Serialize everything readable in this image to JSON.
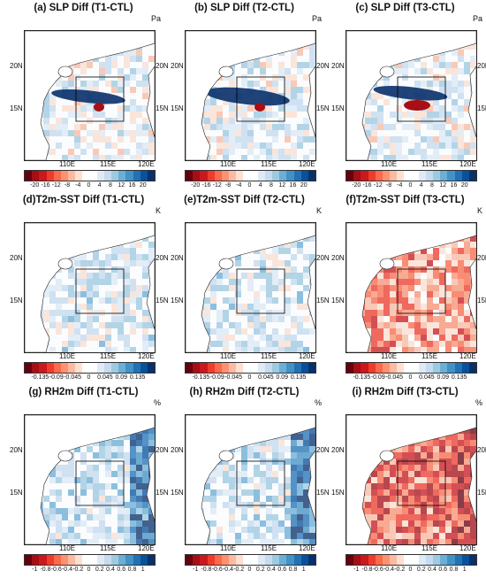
{
  "panels": [
    {
      "title": "(a) SLP Diff (T1-CTL)",
      "unit": "Pa",
      "row": 0,
      "col": 0,
      "type": "slp",
      "exp": "T1"
    },
    {
      "title": "(b) SLP Diff (T2-CTL)",
      "unit": "Pa",
      "row": 0,
      "col": 1,
      "type": "slp",
      "exp": "T2"
    },
    {
      "title": "(c) SLP Diff (T3-CTL)",
      "unit": "Pa",
      "row": 0,
      "col": 2,
      "type": "slp",
      "exp": "T3"
    },
    {
      "title": "(d)T2m-SST Diff (T1-CTL)",
      "unit": "K",
      "row": 1,
      "col": 0,
      "type": "t2m",
      "exp": "T1"
    },
    {
      "title": "(e)T2m-SST Diff (T2-CTL)",
      "unit": "K",
      "row": 1,
      "col": 1,
      "type": "t2m",
      "exp": "T2"
    },
    {
      "title": "(f)T2m-SST Diff (T3-CTL)",
      "unit": "K",
      "row": 1,
      "col": 2,
      "type": "t2m",
      "exp": "T3"
    },
    {
      "title": "(g) RH2m Diff (T1-CTL)",
      "unit": "%",
      "row": 2,
      "col": 0,
      "type": "rh",
      "exp": "T1"
    },
    {
      "title": "(h) RH2m Diff (T2-CTL)",
      "unit": "%",
      "row": 2,
      "col": 1,
      "type": "rh",
      "exp": "T2"
    },
    {
      "title": "(i) RH2m Diff (T3-CTL)",
      "unit": "%",
      "row": 2,
      "col": 2,
      "type": "rh",
      "exp": "T3"
    }
  ],
  "lat_labels": [
    "20N",
    "15N"
  ],
  "lon_labels": [
    "110E",
    "115E",
    "120E"
  ],
  "colorbars": {
    "slp": [
      "-20",
      "-16",
      "-12",
      "-8",
      "-4",
      "0",
      "4",
      "8",
      "12",
      "16",
      "20"
    ],
    "t2m": [
      "-0.135",
      "-0.09",
      "-0.045",
      "0",
      "0.045",
      "0.09",
      "0.135"
    ],
    "rh": [
      "-1",
      "-0.8",
      "-0.6",
      "-0.4",
      "-0.2",
      "0",
      "0.2",
      "0.4",
      "0.6",
      "0.8",
      "1"
    ]
  },
  "colors": {
    "neg_strong": "#a50f15",
    "neg_mid": "#ef6548",
    "neg_light": "#fcbba1",
    "neutral": "#f7f7f7",
    "pos_light": "#c6dbef",
    "pos_mid": "#4292c6",
    "pos_strong": "#08306b",
    "land": "#ffffff",
    "outline": "#222222"
  }
}
